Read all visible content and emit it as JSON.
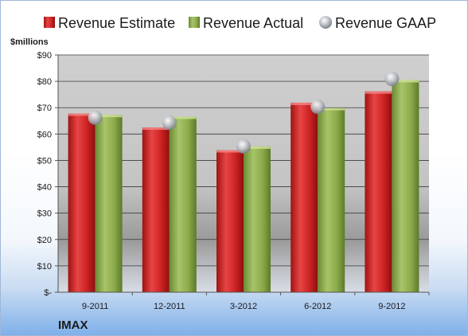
{
  "chart_data": {
    "type": "bar",
    "title": "",
    "company": "IMAX",
    "ylabel": "$millions",
    "xlabel": "",
    "categories": [
      "9-2011",
      "12-2011",
      "3-2012",
      "6-2012",
      "9-2012"
    ],
    "series": [
      {
        "name": "Revenue Estimate",
        "type": "bar",
        "color": "#d42a2a",
        "values": [
          67.8,
          62.5,
          53.9,
          71.9,
          76.2
        ]
      },
      {
        "name": "Revenue Actual",
        "type": "bar",
        "color": "#8cab4a",
        "values": [
          67.3,
          66.6,
          55.3,
          69.9,
          80.5
        ]
      },
      {
        "name": "Revenue GAAP",
        "type": "scatter",
        "color": "#b8bcc4",
        "values": [
          66.2,
          64.3,
          55.3,
          70.3,
          80.9
        ]
      }
    ],
    "ylim": [
      0,
      90
    ],
    "yticks": [
      0,
      10,
      20,
      30,
      40,
      50,
      60,
      70,
      80,
      90
    ],
    "ytick_labels": [
      "$-",
      "$10",
      "$20",
      "$30",
      "$40",
      "$50",
      "$60",
      "$70",
      "$80",
      "$90"
    ],
    "grid": true,
    "legend_position": "top"
  }
}
